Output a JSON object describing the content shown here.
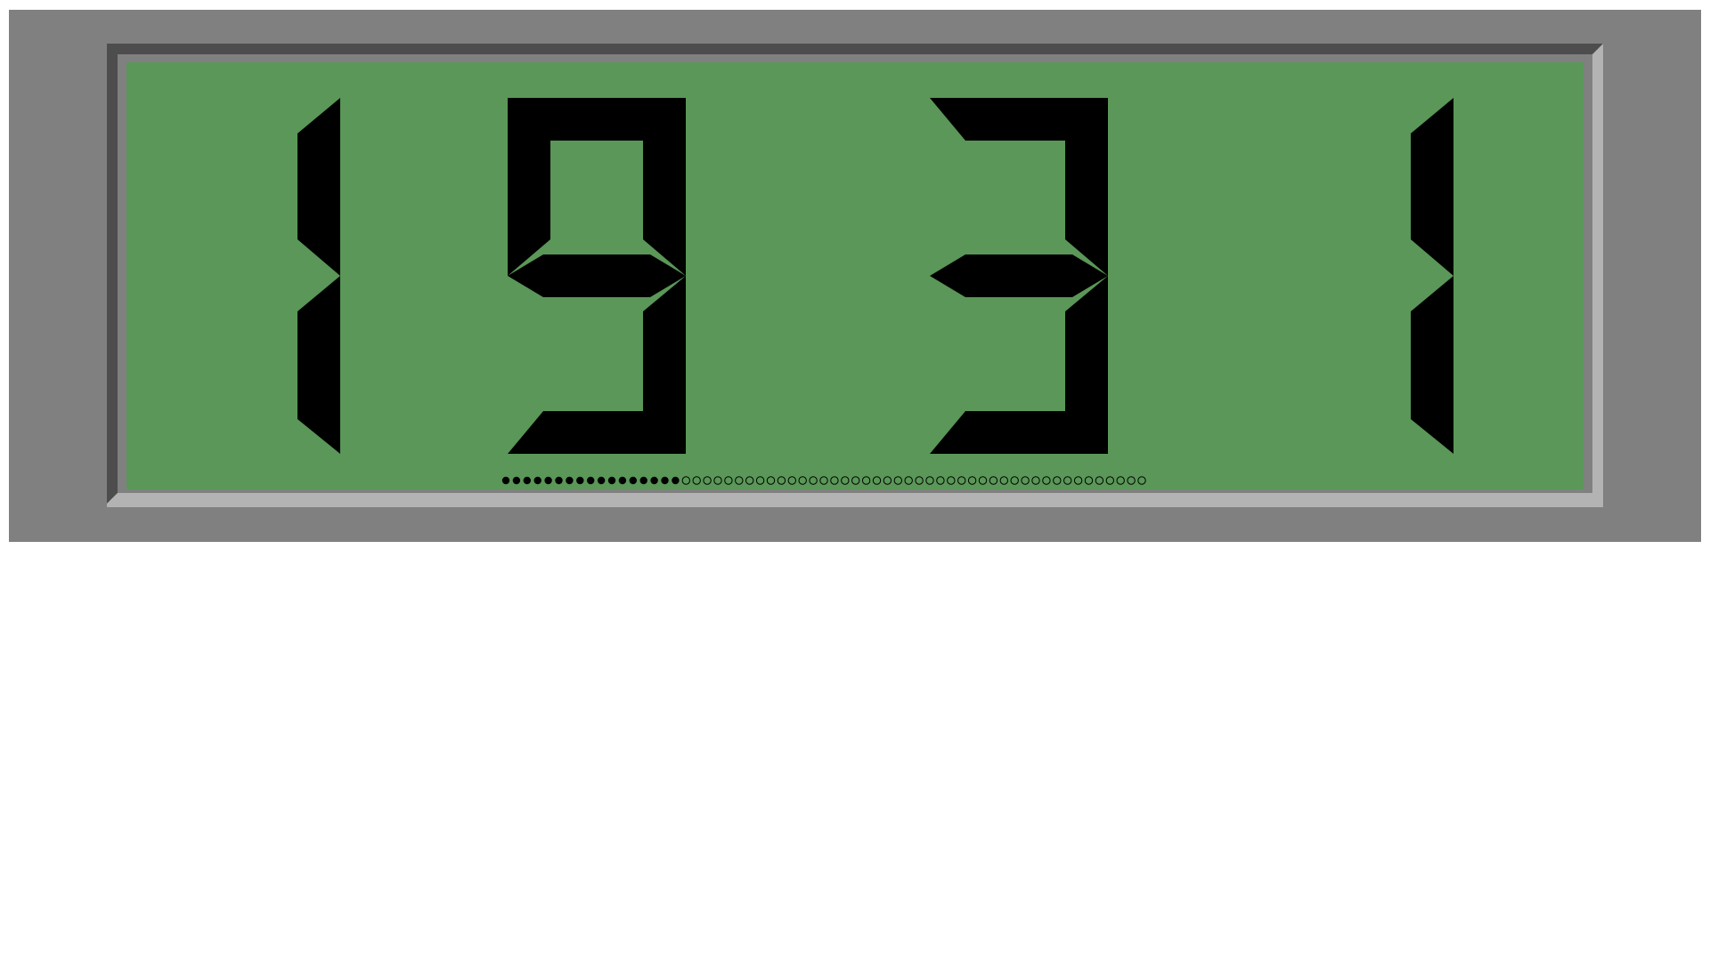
{
  "display": {
    "value_text": "1931",
    "digits": [
      "1",
      "9",
      "3",
      "1"
    ]
  },
  "progress": {
    "filled_dots": 17,
    "total_dots": 61
  },
  "colors": {
    "outer_frame": "#808080",
    "bezel_dark": "#4d4d4d",
    "bezel_light": "#b3b3b3",
    "lcd_background": "#5a9758",
    "segment_on": "#000000",
    "dot": "#000000"
  }
}
